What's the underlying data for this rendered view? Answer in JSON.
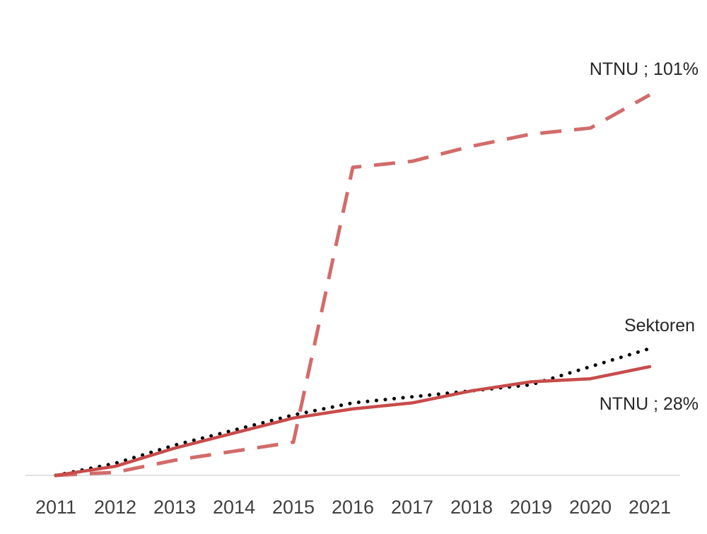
{
  "chart_data": {
    "type": "line",
    "categories": [
      "2011",
      "2012",
      "2013",
      "2014",
      "2015",
      "2016",
      "2017",
      "2018",
      "2019",
      "2020",
      "2021"
    ],
    "ylim": [
      0,
      127
    ],
    "series": [
      {
        "id": "ntnu-dashed",
        "label": "NTNU ; 101%",
        "color": "#d36b6b",
        "style": "dashed",
        "values": [
          0,
          1,
          5,
          8,
          11,
          102,
          104,
          109,
          113,
          115,
          126
        ]
      },
      {
        "id": "sektoren",
        "label": "Sektoren",
        "color": "#000000",
        "style": "dotted",
        "values": [
          0,
          4,
          10,
          15,
          20,
          24,
          26,
          28,
          30,
          36,
          42
        ]
      },
      {
        "id": "ntnu-solid",
        "label": "NTNU ; 28%",
        "color": "#c84b4b",
        "style": "solid",
        "values": [
          0,
          3,
          9,
          14,
          19,
          22,
          24,
          28,
          31,
          32,
          36
        ]
      }
    ]
  }
}
